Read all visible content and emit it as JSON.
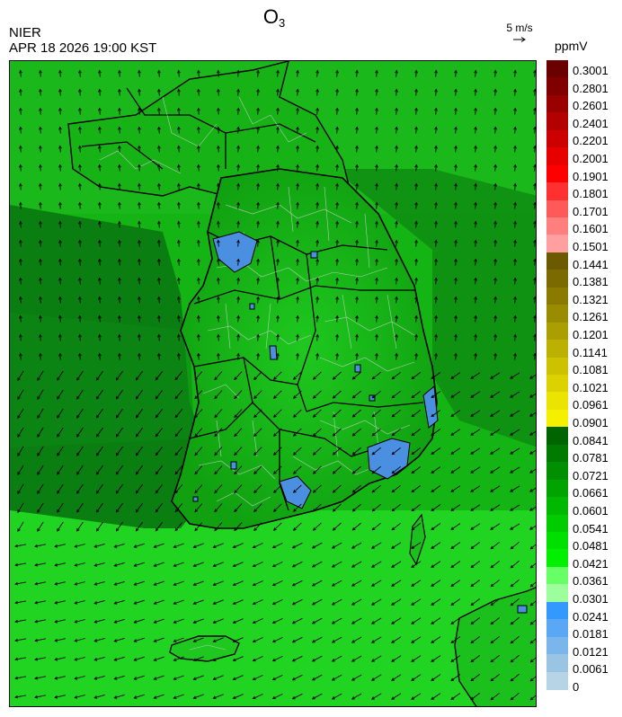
{
  "header": {
    "agency": "NIER",
    "timestamp": "APR 18 2026 19:00 KST",
    "title_main": "O",
    "title_sub": "3"
  },
  "wind_reference": {
    "label": "5 m/s",
    "icon": "arrow-right-icon"
  },
  "legend": {
    "unit": "ppmV",
    "labels": [
      "0.3001",
      "0.2801",
      "0.2601",
      "0.2401",
      "0.2201",
      "0.2001",
      "0.1901",
      "0.1801",
      "0.1701",
      "0.1601",
      "0.1501",
      "0.1441",
      "0.1381",
      "0.1321",
      "0.1261",
      "0.1201",
      "0.1141",
      "0.1081",
      "0.1021",
      "0.0961",
      "0.0901",
      "0.0841",
      "0.0781",
      "0.0721",
      "0.0661",
      "0.0601",
      "0.0541",
      "0.0481",
      "0.0421",
      "0.0361",
      "0.0301",
      "0.0241",
      "0.0181",
      "0.0121",
      "0.0061",
      "0"
    ],
    "colors": [
      "#6b0000",
      "#800000",
      "#990000",
      "#b30000",
      "#cc0000",
      "#e60000",
      "#ff0000",
      "#ff3030",
      "#ff5a5a",
      "#ff7f7f",
      "#ff9f9f",
      "#6b5a00",
      "#7a6a00",
      "#8a7a00",
      "#9a8c00",
      "#ab9e00",
      "#bcb000",
      "#cdc200",
      "#dcd200",
      "#ebe300",
      "#f5f000",
      "#006400",
      "#007a00",
      "#008f00",
      "#00a300",
      "#00b800",
      "#00cc00",
      "#00e000",
      "#00f000",
      "#66ff66",
      "#9cff9c",
      "#3399ff",
      "#5aa8f5",
      "#7ab6ec",
      "#9ac4e4",
      "#b6d4e6"
    ]
  },
  "map": {
    "field_color_dark": "#0a7a10",
    "field_color_mid": "#13a813",
    "field_color_bright": "#22d022",
    "low_ozone_color": "#4a8fe0",
    "coastline_color": "#000000",
    "boundary_color": "#c8c8c8"
  }
}
